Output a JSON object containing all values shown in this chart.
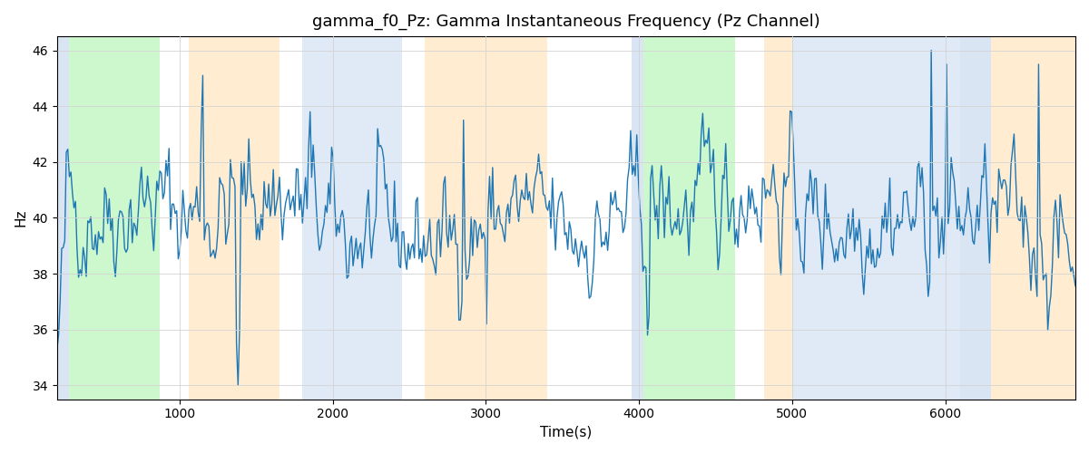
{
  "title": "gamma_f0_Pz: Gamma Instantaneous Frequency (Pz Channel)",
  "xlabel": "Time(s)",
  "ylabel": "Hz",
  "ylim": [
    33.5,
    46.5
  ],
  "xlim": [
    200,
    6850
  ],
  "yticks": [
    34,
    36,
    38,
    40,
    42,
    44,
    46
  ],
  "line_color": "#1f77b4",
  "line_width": 1.0,
  "background_color": "#ffffff",
  "bands": [
    {
      "xmin": 200,
      "xmax": 280,
      "color": "#aec6e8",
      "alpha": 0.45
    },
    {
      "xmin": 280,
      "xmax": 870,
      "color": "#90ee90",
      "alpha": 0.45
    },
    {
      "xmin": 1060,
      "xmax": 1650,
      "color": "#ffd59a",
      "alpha": 0.45
    },
    {
      "xmin": 1800,
      "xmax": 2450,
      "color": "#aec6e8",
      "alpha": 0.38
    },
    {
      "xmin": 2600,
      "xmax": 3400,
      "color": "#ffd59a",
      "alpha": 0.45
    },
    {
      "xmin": 3950,
      "xmax": 4030,
      "color": "#aec6e8",
      "alpha": 0.45
    },
    {
      "xmin": 4030,
      "xmax": 4630,
      "color": "#90ee90",
      "alpha": 0.45
    },
    {
      "xmin": 4820,
      "xmax": 5000,
      "color": "#ffd59a",
      "alpha": 0.45
    },
    {
      "xmin": 5000,
      "xmax": 6100,
      "color": "#aec6e8",
      "alpha": 0.38
    },
    {
      "xmin": 6100,
      "xmax": 6300,
      "color": "#aec6e8",
      "alpha": 0.45
    },
    {
      "xmin": 6300,
      "xmax": 6850,
      "color": "#ffd59a",
      "alpha": 0.45
    }
  ],
  "seed": 42,
  "t_start": 200,
  "t_end": 6850,
  "mean_freq": 40.0
}
